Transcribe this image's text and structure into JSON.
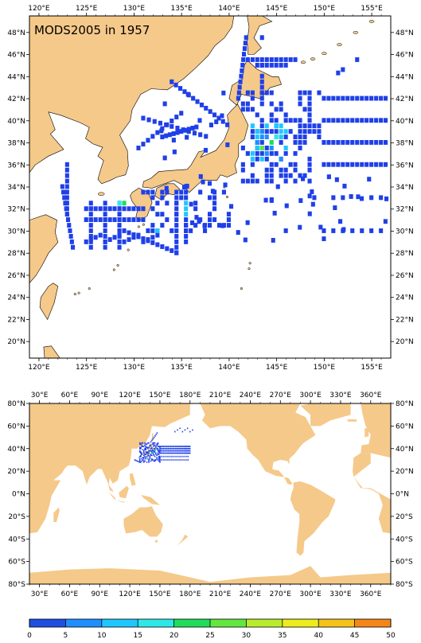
{
  "title": "MODS2005 in 1957",
  "map1": {
    "lon_labels": [
      "120°E",
      "125°E",
      "130°E",
      "135°E",
      "140°E",
      "145°E",
      "150°E",
      "155°E"
    ],
    "lat_labels": [
      "20°N",
      "22°N",
      "24°N",
      "26°N",
      "28°N",
      "30°N",
      "32°N",
      "34°N",
      "36°N",
      "38°N",
      "40°N",
      "42°N",
      "44°N",
      "46°N",
      "48°N"
    ],
    "lon_range": [
      119,
      157
    ],
    "lat_range": [
      18.5,
      49.5
    ]
  },
  "map2": {
    "lon_labels": [
      "30°E",
      "60°E",
      "90°E",
      "120°E",
      "150°E",
      "180°E",
      "210°E",
      "240°E",
      "270°E",
      "300°E",
      "330°E",
      "360°E"
    ],
    "lat_labels": [
      "80°S",
      "60°S",
      "40°S",
      "20°S",
      "0°N",
      "20°N",
      "40°N",
      "60°N",
      "80°N"
    ],
    "lon_range": [
      20,
      380
    ],
    "lat_range": [
      -80,
      80
    ]
  },
  "colorbar": {
    "ticks": [
      "0",
      "5",
      "10",
      "15",
      "20",
      "25",
      "30",
      "35",
      "40",
      "45",
      "50"
    ],
    "colors": [
      "#1f4fe0",
      "#1f8fff",
      "#1fc7ff",
      "#2ee8e8",
      "#1fdc5a",
      "#63e63f",
      "#b8ec2d",
      "#ecec1f",
      "#f5c21a",
      "#f5861a"
    ]
  },
  "colors": {
    "land": "#f5c98a",
    "ocean": "#ffffff",
    "data_main": "#1f3fe8"
  }
}
